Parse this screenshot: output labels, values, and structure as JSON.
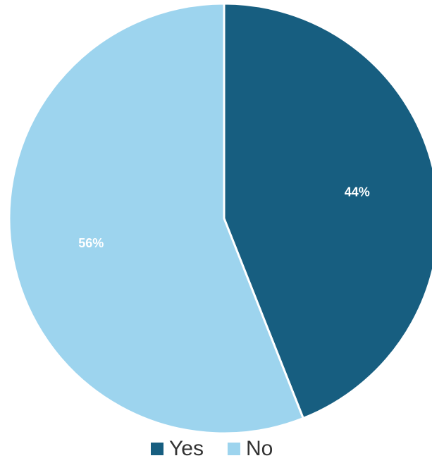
{
  "chart_data": {
    "type": "pie",
    "categories": [
      "Yes",
      "No"
    ],
    "values": [
      44,
      56
    ],
    "value_labels": [
      "44%",
      "56%"
    ],
    "colors": [
      "#175e80",
      "#9dd4ee"
    ],
    "legend": "bottom"
  }
}
